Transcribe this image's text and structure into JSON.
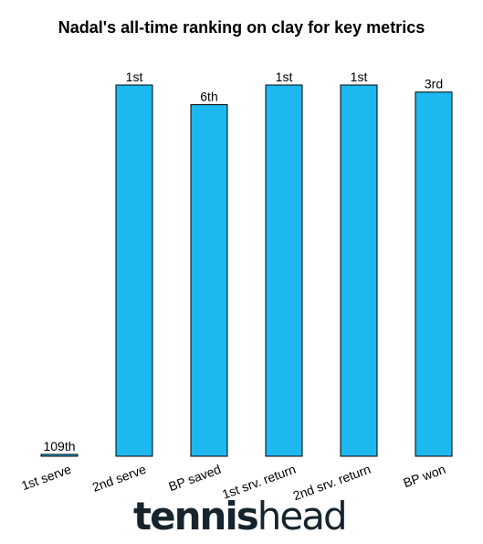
{
  "chart_data": {
    "type": "bar",
    "title": "Nadal's all-time ranking on clay for key metrics",
    "categories": [
      "1st serve",
      "2nd serve",
      "BP saved",
      "1st srv. return",
      "2nd srv. return",
      "BP won"
    ],
    "rank_labels": [
      "109th",
      "1st",
      "6th",
      "1st",
      "1st",
      "3rd"
    ],
    "values": [
      0.5,
      100,
      94.7,
      100,
      100,
      98.1
    ],
    "ylim": [
      0,
      100
    ],
    "bar_color": "#1eb8f0",
    "grid": false,
    "legend": "none"
  },
  "logo": {
    "part1": "tennis",
    "part2": "head"
  }
}
